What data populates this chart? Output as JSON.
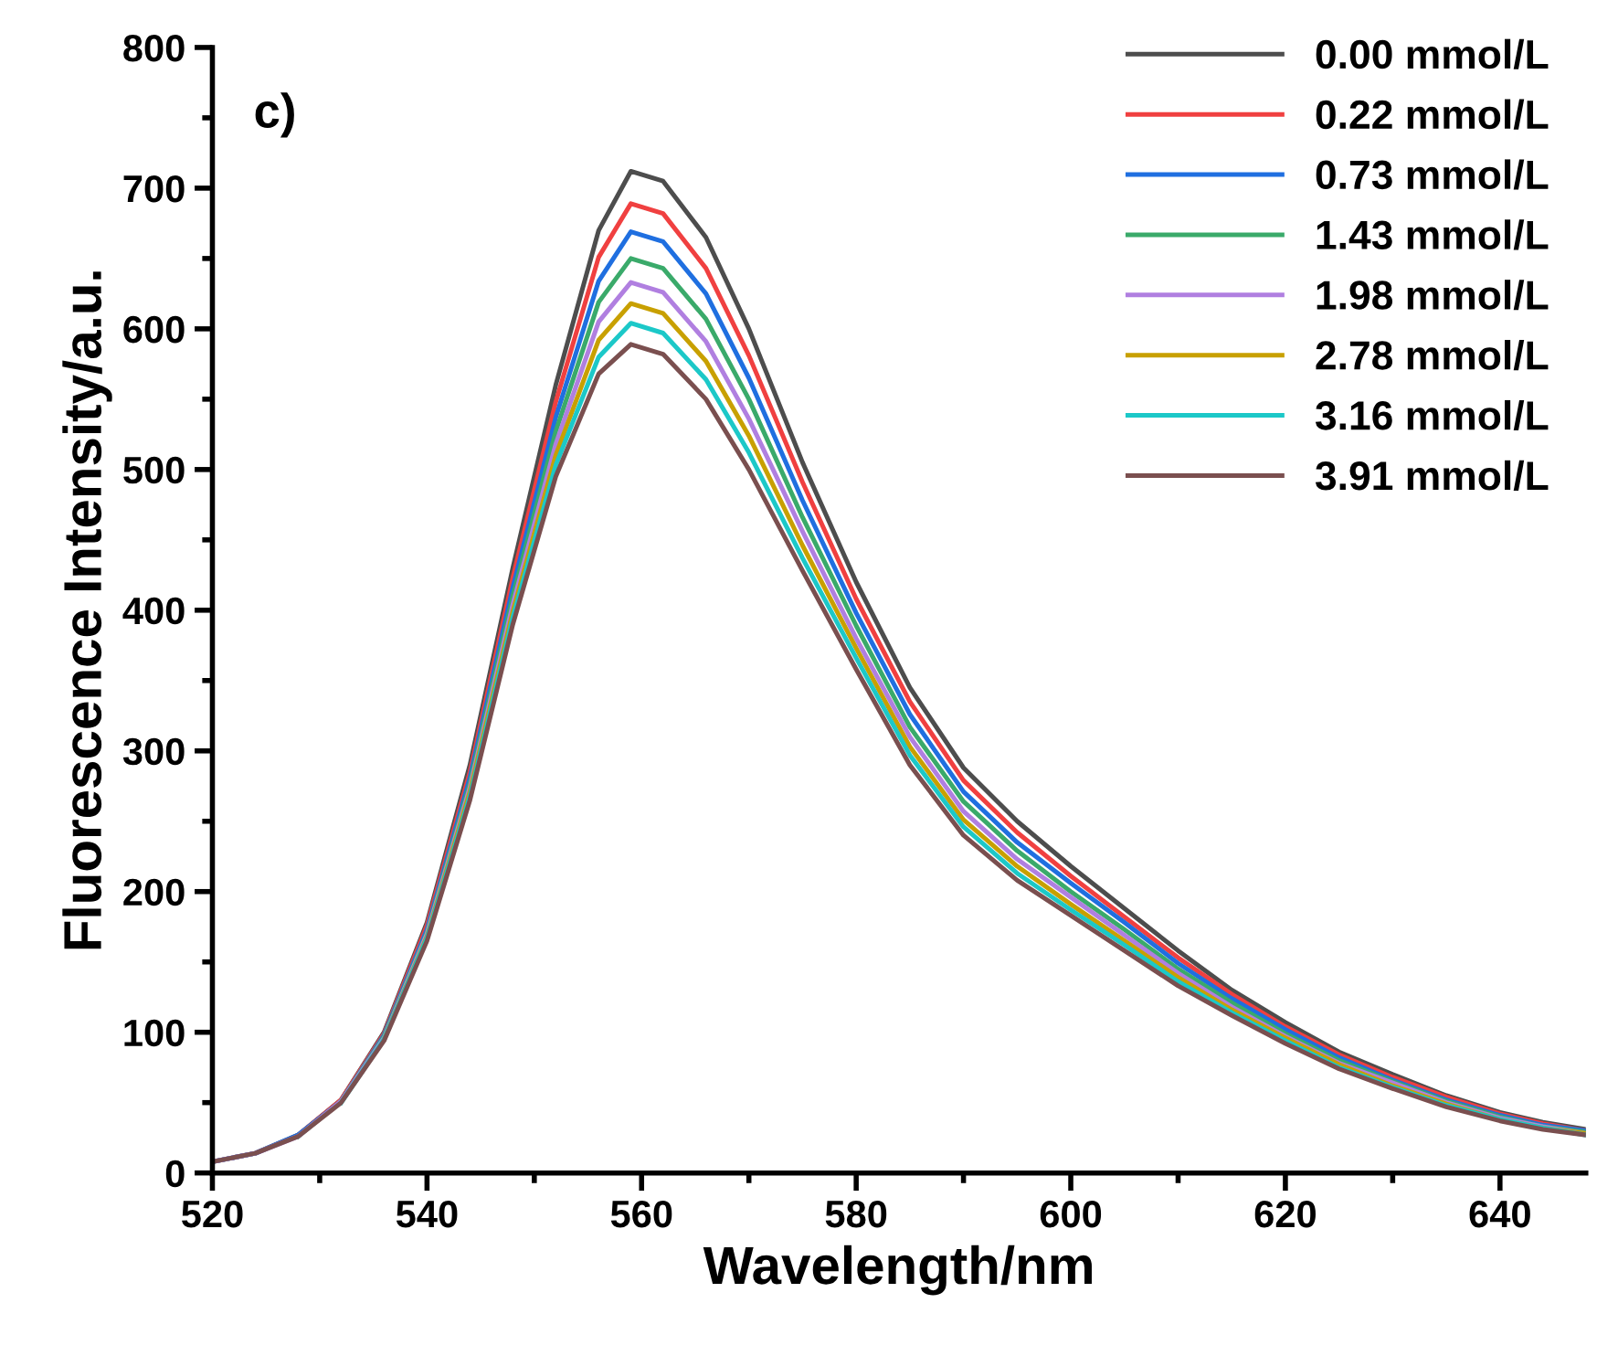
{
  "chart_data": {
    "type": "line",
    "xlabel": "Wavelength/nm",
    "ylabel": "Fluorescence Intensity/a.u.",
    "annotations": [
      "c)"
    ],
    "x": [
      520,
      524,
      528,
      532,
      536,
      540,
      544,
      548,
      552,
      556,
      559,
      562,
      566,
      570,
      575,
      580,
      585,
      590,
      595,
      600,
      605,
      610,
      615,
      620,
      625,
      630,
      635,
      640,
      644,
      648
    ],
    "series": [
      {
        "name": "0.00 mmol/L",
        "color": "#4d4d4d",
        "values": [
          8,
          14,
          27,
          52,
          100,
          178,
          290,
          430,
          560,
          670,
          712,
          705,
          665,
          600,
          505,
          420,
          345,
          288,
          250,
          218,
          188,
          158,
          130,
          107,
          86,
          70,
          55,
          43,
          36,
          31
        ]
      },
      {
        "name": "0.22 mmol/L",
        "color": "#f04040",
        "values": [
          null,
          null,
          27,
          52,
          99,
          176,
          285,
          423,
          548,
          651,
          689,
          682,
          643,
          581,
          491,
          408,
          335,
          279,
          242,
          211,
          182,
          153,
          127,
          104,
          84,
          68,
          54,
          42,
          35,
          30
        ]
      },
      {
        "name": "0.73 mmol/L",
        "color": "#1f6fe0",
        "values": [
          8,
          14,
          27,
          51,
          98,
          173,
          281,
          416,
          537,
          634,
          669,
          662,
          625,
          565,
          478,
          398,
          326,
          271,
          235,
          206,
          178,
          149,
          124,
          102,
          82,
          66,
          52,
          41,
          34,
          30
        ]
      },
      {
        "name": "1.43 mmol/L",
        "color": "#3aaa6a",
        "values": [
          null,
          null,
          26,
          51,
          97,
          171,
          277,
          410,
          527,
          619,
          650,
          643,
          607,
          550,
          466,
          389,
          317,
          264,
          229,
          200,
          173,
          145,
          121,
          99,
          80,
          65,
          51,
          40,
          33,
          29
        ]
      },
      {
        "name": "1.98 mmol/L",
        "color": "#b07fe0",
        "values": [
          8,
          14,
          26,
          51,
          96,
          170,
          274,
          404,
          518,
          605,
          633,
          626,
          591,
          536,
          456,
          380,
          310,
          257,
          223,
          196,
          169,
          142,
          118,
          97,
          78,
          64,
          50,
          39,
          33,
          28
        ]
      },
      {
        "name": "2.78 mmol/L",
        "color": "#c8a000",
        "values": [
          null,
          null,
          null,
          null,
          95,
          168,
          271,
          399,
          510,
          592,
          618,
          611,
          577,
          524,
          446,
          373,
          303,
          251,
          218,
          191,
          165,
          139,
          116,
          96,
          77,
          62,
          49,
          38,
          32,
          28
        ]
      },
      {
        "name": "3.16 mmol/L",
        "color": "#1cc8c8",
        "values": [
          null,
          null,
          null,
          50,
          95,
          167,
          268,
          395,
          503,
          580,
          604,
          597,
          564,
          512,
          437,
          366,
          297,
          246,
          213,
          187,
          162,
          136,
          114,
          94,
          75,
          61,
          48,
          38,
          32,
          27
        ]
      },
      {
        "name": "3.91 mmol/L",
        "color": "#7a4f4f",
        "values": [
          8,
          14,
          26,
          50,
          94,
          165,
          265,
          390,
          495,
          568,
          589,
          582,
          550,
          500,
          428,
          358,
          290,
          240,
          208,
          183,
          158,
          133,
          112,
          92,
          74,
          60,
          47,
          37,
          31,
          27
        ]
      }
    ],
    "xlim": [
      520,
      648
    ],
    "ylim": [
      0,
      800
    ],
    "xticks": [
      520,
      540,
      560,
      580,
      600,
      620,
      640
    ],
    "yticks": [
      0,
      100,
      200,
      300,
      400,
      500,
      600,
      700,
      800
    ],
    "legend": "top right",
    "grid": false,
    "marker": "none",
    "line_style": "solid"
  }
}
